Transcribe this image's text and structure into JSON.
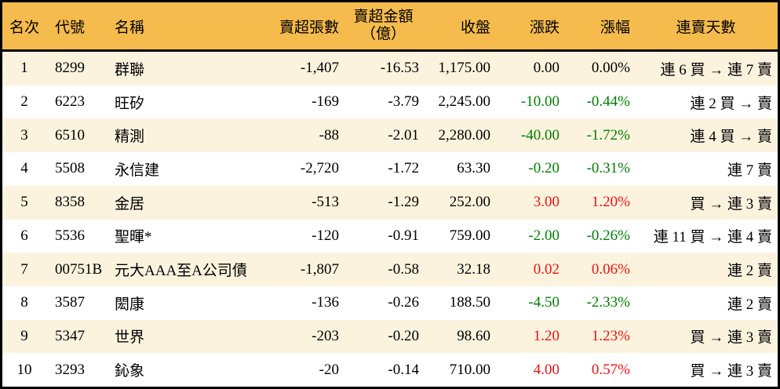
{
  "table": {
    "columns": {
      "rank": "名次",
      "code": "代號",
      "name": "名稱",
      "volume": "賣超張數",
      "amount_line1": "賣超金額",
      "amount_line2": "（億）",
      "close": "收盤",
      "change": "漲跌",
      "change_pct": "漲幅",
      "streak": "連賣天數"
    },
    "rows": [
      {
        "rank": "1",
        "code": "8299",
        "name": "群聯",
        "volume": "-1,407",
        "amount": "-16.53",
        "close": "1,175.00",
        "change": "0.00",
        "change_pct": "0.00%",
        "streak": "連 6 買 → 連 7 賣",
        "trend": "flat"
      },
      {
        "rank": "2",
        "code": "6223",
        "name": "旺矽",
        "volume": "-169",
        "amount": "-3.79",
        "close": "2,245.00",
        "change": "-10.00",
        "change_pct": "-0.44%",
        "streak": "連 2 買 → 賣",
        "trend": "down"
      },
      {
        "rank": "3",
        "code": "6510",
        "name": "精測",
        "volume": "-88",
        "amount": "-2.01",
        "close": "2,280.00",
        "change": "-40.00",
        "change_pct": "-1.72%",
        "streak": "連 4 買 → 賣",
        "trend": "down"
      },
      {
        "rank": "4",
        "code": "5508",
        "name": "永信建",
        "volume": "-2,720",
        "amount": "-1.72",
        "close": "63.30",
        "change": "-0.20",
        "change_pct": "-0.31%",
        "streak": "連 7 賣",
        "trend": "down"
      },
      {
        "rank": "5",
        "code": "8358",
        "name": "金居",
        "volume": "-513",
        "amount": "-1.29",
        "close": "252.00",
        "change": "3.00",
        "change_pct": "1.20%",
        "streak": "買 → 連 3 賣",
        "trend": "up"
      },
      {
        "rank": "6",
        "code": "5536",
        "name": "聖暉*",
        "volume": "-120",
        "amount": "-0.91",
        "close": "759.00",
        "change": "-2.00",
        "change_pct": "-0.26%",
        "streak": "連 11 買 → 連 4 賣",
        "trend": "down"
      },
      {
        "rank": "7",
        "code": "00751B",
        "name": "元大AAA至A公司債",
        "volume": "-1,807",
        "amount": "-0.58",
        "close": "32.18",
        "change": "0.02",
        "change_pct": "0.06%",
        "streak": "連 2 賣",
        "trend": "up"
      },
      {
        "rank": "8",
        "code": "3587",
        "name": "閎康",
        "volume": "-136",
        "amount": "-0.26",
        "close": "188.50",
        "change": "-4.50",
        "change_pct": "-2.33%",
        "streak": "連 2 賣",
        "trend": "down"
      },
      {
        "rank": "9",
        "code": "5347",
        "name": "世界",
        "volume": "-203",
        "amount": "-0.20",
        "close": "98.60",
        "change": "1.20",
        "change_pct": "1.23%",
        "streak": "買 → 連 3 賣",
        "trend": "up"
      },
      {
        "rank": "10",
        "code": "3293",
        "name": "鈊象",
        "volume": "-20",
        "amount": "-0.14",
        "close": "710.00",
        "change": "4.00",
        "change_pct": "0.57%",
        "streak": "買 → 連 3 賣",
        "trend": "up"
      }
    ]
  },
  "colors": {
    "up": "#ee1111",
    "down": "#008000",
    "flat": "#000000",
    "header_bg": "#f5bb4d",
    "row_odd_bg": "#fcf3de",
    "row_even_bg": "#ffffff",
    "border": "#000000"
  },
  "chart_data": {
    "type": "table",
    "title": "賣超排行 (券商賣超個股排行表)",
    "columns": [
      "名次",
      "代號",
      "名稱",
      "賣超張數",
      "賣超金額（億）",
      "收盤",
      "漲跌",
      "漲幅",
      "連賣天數"
    ],
    "rows": [
      [
        "1",
        "8299",
        "群聯",
        -1407,
        -16.53,
        1175.0,
        0.0,
        "0.00%",
        "連 6 買 → 連 7 賣"
      ],
      [
        "2",
        "6223",
        "旺矽",
        -169,
        -3.79,
        2245.0,
        -10.0,
        "-0.44%",
        "連 2 買 → 賣"
      ],
      [
        "3",
        "6510",
        "精測",
        -88,
        -2.01,
        2280.0,
        -40.0,
        "-1.72%",
        "連 4 買 → 賣"
      ],
      [
        "4",
        "5508",
        "永信建",
        -2720,
        -1.72,
        63.3,
        -0.2,
        "-0.31%",
        "連 7 賣"
      ],
      [
        "5",
        "8358",
        "金居",
        -513,
        -1.29,
        252.0,
        3.0,
        "1.20%",
        "買 → 連 3 賣"
      ],
      [
        "6",
        "5536",
        "聖暉*",
        -120,
        -0.91,
        759.0,
        -2.0,
        "-0.26%",
        "連 11 買 → 連 4 賣"
      ],
      [
        "7",
        "00751B",
        "元大AAA至A公司債",
        -1807,
        -0.58,
        32.18,
        0.02,
        "0.06%",
        "連 2 賣"
      ],
      [
        "8",
        "3587",
        "閎康",
        -136,
        -0.26,
        188.5,
        -4.5,
        "-2.33%",
        "連 2 賣"
      ],
      [
        "9",
        "5347",
        "世界",
        -203,
        -0.2,
        98.6,
        1.2,
        "1.23%",
        "買 → 連 3 賣"
      ],
      [
        "10",
        "3293",
        "鈊象",
        -20,
        -0.14,
        710.0,
        4.0,
        "0.57%",
        "買 → 連 3 賣"
      ]
    ],
    "layout_hints": {
      "header_background": "#f5bb4d",
      "zebra_striping": true,
      "positive_change_color": "#ee1111",
      "negative_change_color": "#008000",
      "grid": "off"
    }
  }
}
